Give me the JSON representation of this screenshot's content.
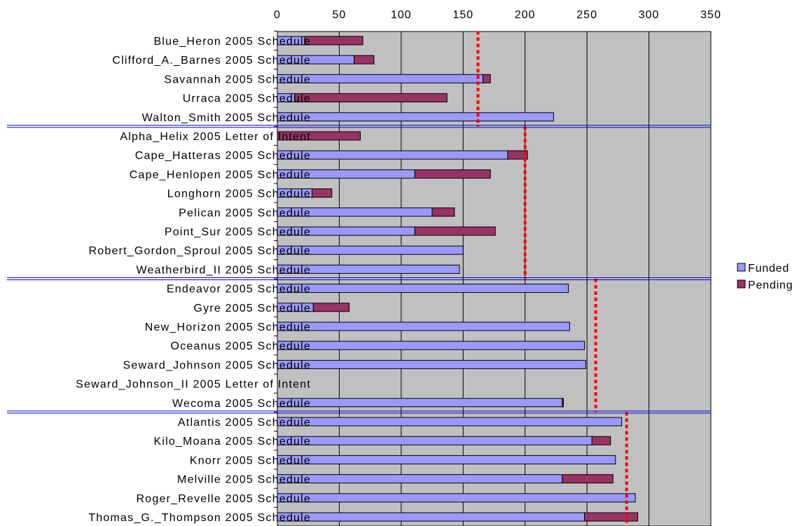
{
  "chart_data": {
    "type": "bar",
    "orientation": "horizontal",
    "stacked": true,
    "title": "",
    "xlabel": "",
    "ylabel": "",
    "xlim": [
      0,
      350
    ],
    "x_ticks": [
      0,
      50,
      100,
      150,
      200,
      250,
      300,
      350
    ],
    "x_axis_position": "top",
    "grid": true,
    "plot_background": "#c0c0c0",
    "legend_position": "right",
    "categories": [
      "Blue_Heron 2005 Schedule",
      "Clifford_A._Barnes 2005 Schedule",
      "Savannah 2005 Schedule",
      "Urraca 2005 Schedule",
      "Walton_Smith 2005 Schedule",
      "Alpha_Helix 2005 Letter of Intent",
      "Cape_Hatteras 2005 Schedule",
      "Cape_Henlopen 2005 Schedule",
      "Longhorn 2005 Schedule",
      "Pelican 2005 Schedule",
      "Point_Sur 2005 Schedule",
      "Robert_Gordon_Sproul 2005 Schedule",
      "Weatherbird_II 2005 Schedule",
      "Endeavor 2005 Schedule",
      "Gyre 2005 Schedule",
      "New_Horizon 2005 Schedule",
      "Oceanus 2005 Schedule",
      "Seward_Johnson 2005 Schedule",
      "Seward_Johnson_II 2005 Letter of Intent",
      "Wecoma 2005 Schedule",
      "Atlantis 2005 Schedule",
      "Kilo_Moana 2005 Schedule",
      "Knorr 2005 Schedule",
      "Melville 2005 Schedule",
      "Roger_Revelle 2005 Schedule",
      "Thomas_G._Thompson 2005 Schedule"
    ],
    "series": [
      {
        "name": "Funded",
        "color": "#9999ff",
        "values": [
          22,
          62,
          166,
          14,
          223,
          0,
          186,
          111,
          28,
          125,
          111,
          150,
          147,
          235,
          29,
          236,
          248,
          249,
          0,
          230,
          278,
          254,
          273,
          230,
          289,
          248
        ]
      },
      {
        "name": "Pending",
        "color": "#993366",
        "values": [
          47,
          16,
          6,
          123,
          0,
          67,
          16,
          61,
          16,
          18,
          65,
          0,
          0,
          0,
          29,
          0,
          0,
          0,
          0,
          1,
          0,
          15,
          0,
          41,
          0,
          43
        ]
      }
    ],
    "reference_lines": [
      {
        "value": 162,
        "from_row": 0,
        "to_row": 4,
        "color": "#ff0000",
        "style": "dotted"
      },
      {
        "value": 200,
        "from_row": 5,
        "to_row": 12,
        "color": "#ff0000",
        "style": "dotted"
      },
      {
        "value": 257,
        "from_row": 13,
        "to_row": 19,
        "color": "#ff0000",
        "style": "dotted"
      },
      {
        "value": 282,
        "from_row": 20,
        "to_row": 25,
        "color": "#ff0000",
        "style": "dotted"
      }
    ],
    "group_separators_after_rows": [
      4,
      12,
      19
    ],
    "separator_color": "#0000cc"
  }
}
